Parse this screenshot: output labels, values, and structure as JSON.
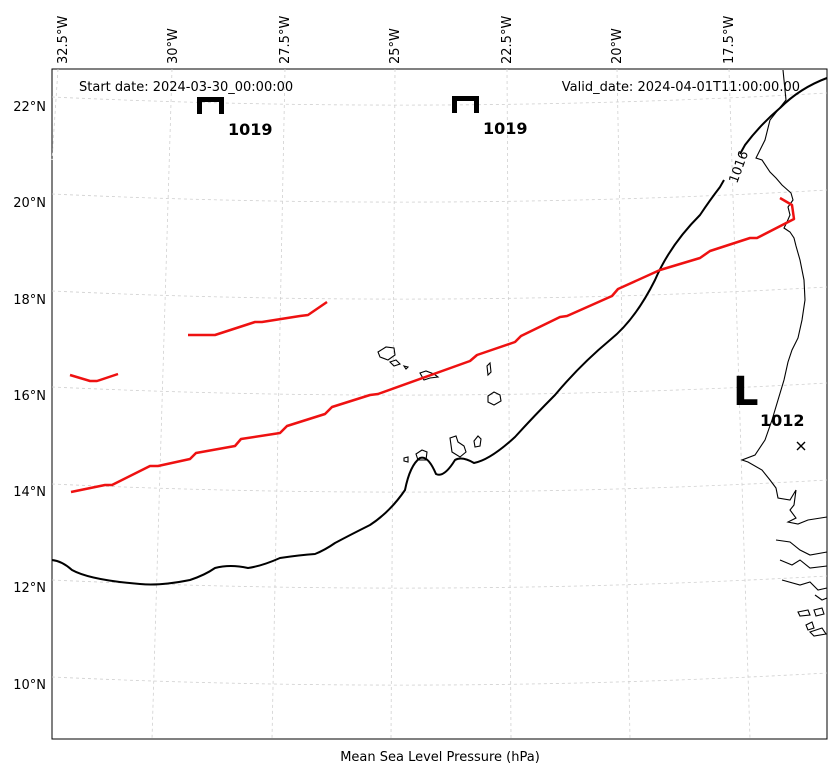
{
  "header": {
    "start_date": "Start date: 2024-03-30_00:00:00",
    "valid_date": "Valid_date: 2024-04-01T11:00:00.00"
  },
  "axes": {
    "x_ticks": [
      "32.5°W",
      "30°W",
      "27.5°W",
      "25°W",
      "22.5°W",
      "20°W",
      "17.5°W"
    ],
    "y_ticks": [
      "22°N",
      "20°N",
      "18°N",
      "16°N",
      "14°N",
      "12°N",
      "10°N"
    ],
    "xlabel": "Mean Sea Level Pressure (hPa)"
  },
  "pressure_centers": [
    {
      "type": "H",
      "value": "1019"
    },
    {
      "type": "H",
      "value": "1019"
    },
    {
      "type": "L",
      "value": "1012"
    }
  ],
  "isobars": [
    {
      "value": "1016"
    }
  ],
  "colors": {
    "isobar": "#000000",
    "front": "#ee1111",
    "grid": "#d0d0d0"
  }
}
